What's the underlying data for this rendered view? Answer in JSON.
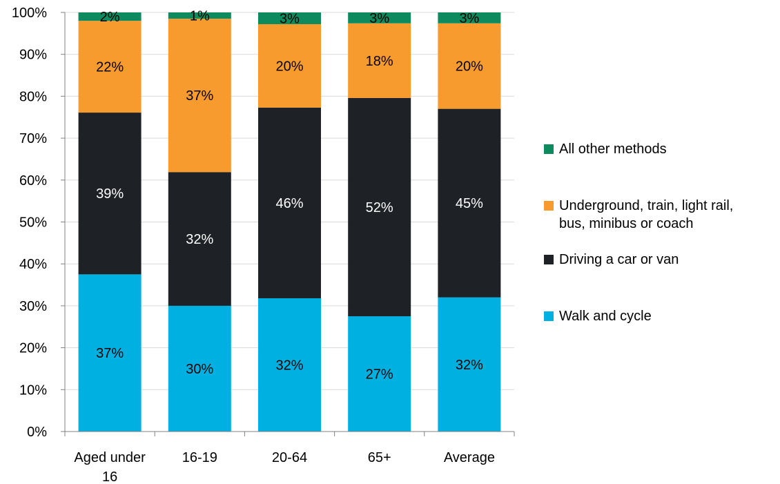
{
  "chart_data": {
    "type": "bar",
    "stacked": true,
    "title": "",
    "xlabel": "",
    "ylabel": "",
    "ylim": [
      0,
      100
    ],
    "y_tick_values": [
      0,
      10,
      20,
      30,
      40,
      50,
      60,
      70,
      80,
      90,
      100
    ],
    "y_tick_labels": [
      "0%",
      "10%",
      "20%",
      "30%",
      "40%",
      "50%",
      "60%",
      "70%",
      "80%",
      "90%",
      "100%"
    ],
    "categories": [
      "Aged under 16",
      "16-19",
      "20-64",
      "65+",
      "Average"
    ],
    "category_labels": [
      [
        "Aged under",
        "16"
      ],
      [
        "16-19"
      ],
      [
        "20-64"
      ],
      [
        "65+"
      ],
      [
        "Average"
      ]
    ],
    "grid": true,
    "legend_position": "right",
    "series": [
      {
        "name": "Walk and cycle",
        "color": "#00B0E0",
        "values": [
          37.5,
          30,
          31.8,
          27.5,
          32
        ],
        "labels": [
          "37%",
          "30%",
          "32%",
          "27%",
          "32%"
        ],
        "label_color": "#000000"
      },
      {
        "name": "Driving a car or van",
        "color": "#1E2126",
        "values": [
          38.6,
          31.9,
          45.5,
          52.1,
          45
        ],
        "labels": [
          "39%",
          "32%",
          "46%",
          "52%",
          "45%"
        ],
        "label_color": "#FFFFFF"
      },
      {
        "name": "Underground, train, light rail, bus, minibus or coach",
        "color": "#F79B2E",
        "values": [
          21.9,
          36.6,
          19.9,
          17.8,
          20.4
        ],
        "labels": [
          "22%",
          "37%",
          "20%",
          "18%",
          "20%"
        ],
        "label_color": "#000000"
      },
      {
        "name": "All other methods",
        "color": "#0E8A5F",
        "values": [
          2,
          1.5,
          2.8,
          2.6,
          2.6
        ],
        "labels": [
          "2%",
          "1%",
          "3%",
          "3%",
          "3%"
        ],
        "label_color": "#000000"
      }
    ]
  },
  "legend": {
    "items": [
      {
        "lines": [
          "All other methods"
        ],
        "color": "#0E8A5F"
      },
      {
        "lines": [
          "Underground, train, light rail,",
          "bus, minibus or coach"
        ],
        "color": "#F79B2E"
      },
      {
        "lines": [
          "Driving a car or van"
        ],
        "color": "#1E2126"
      },
      {
        "lines": [
          "Walk and cycle"
        ],
        "color": "#00B0E0"
      }
    ]
  }
}
